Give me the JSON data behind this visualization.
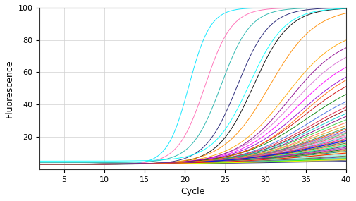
{
  "xlabel": "Cycle",
  "ylabel": "Fluorescence",
  "xlim": [
    2,
    40
  ],
  "ylim": [
    0,
    100
  ],
  "xticks": [
    5,
    10,
    15,
    20,
    25,
    30,
    35,
    40
  ],
  "yticks": [
    20,
    40,
    60,
    80,
    100
  ],
  "background_color": "#ffffff",
  "grid_color": "#d0d0d0",
  "curves": [
    {
      "color": "#00e5ff",
      "midpoint": 20.5,
      "steepness": 0.75,
      "ymax": 100,
      "ymin": 3
    },
    {
      "color": "#ff69b4",
      "midpoint": 22.5,
      "steepness": 0.6,
      "ymax": 100,
      "ymin": 3
    },
    {
      "color": "#20b2aa",
      "midpoint": 24.5,
      "steepness": 0.55,
      "ymax": 100,
      "ymin": 4
    },
    {
      "color": "#191970",
      "midpoint": 26.5,
      "steepness": 0.5,
      "ymax": 100,
      "ymin": 3
    },
    {
      "color": "#000000",
      "midpoint": 28.5,
      "steepness": 0.45,
      "ymax": 100,
      "ymin": 3
    },
    {
      "color": "#ff8c00",
      "midpoint": 30.5,
      "steepness": 0.35,
      "ymax": 100,
      "ymin": 3
    },
    {
      "color": "#ffa500",
      "midpoint": 32.5,
      "steepness": 0.3,
      "ymax": 88,
      "ymin": 3
    },
    {
      "color": "#da70d6",
      "midpoint": 33.5,
      "steepness": 0.28,
      "ymax": 80,
      "ymin": 3
    },
    {
      "color": "#ff00ff",
      "midpoint": 34.0,
      "steepness": 0.27,
      "ymax": 75,
      "ymin": 3
    },
    {
      "color": "#9400d3",
      "midpoint": 34.5,
      "steepness": 0.26,
      "ymax": 70,
      "ymin": 3
    },
    {
      "color": "#cc0000",
      "midpoint": 35.0,
      "steepness": 0.25,
      "ymax": 65,
      "ymin": 3
    },
    {
      "color": "#008000",
      "midpoint": 35.2,
      "steepness": 0.24,
      "ymax": 60,
      "ymin": 3
    },
    {
      "color": "#4169e1",
      "midpoint": 35.5,
      "steepness": 0.24,
      "ymax": 55,
      "ymin": 3
    },
    {
      "color": "#dc143c",
      "midpoint": 35.8,
      "steepness": 0.23,
      "ymax": 52,
      "ymin": 3
    },
    {
      "color": "#8b0000",
      "midpoint": 36.0,
      "steepness": 0.23,
      "ymax": 50,
      "ymin": 3
    },
    {
      "color": "#00ced1",
      "midpoint": 36.2,
      "steepness": 0.22,
      "ymax": 48,
      "ymin": 3
    },
    {
      "color": "#800080",
      "midpoint": 36.4,
      "steepness": 0.22,
      "ymax": 46,
      "ymin": 3
    },
    {
      "color": "#32cd32",
      "midpoint": 36.6,
      "steepness": 0.21,
      "ymax": 44,
      "ymin": 3
    },
    {
      "color": "#ff6347",
      "midpoint": 36.8,
      "steepness": 0.21,
      "ymax": 42,
      "ymin": 3
    },
    {
      "color": "#daa520",
      "midpoint": 37.0,
      "steepness": 0.2,
      "ymax": 40,
      "ymin": 3
    },
    {
      "color": "#2e8b57",
      "midpoint": 37.1,
      "steepness": 0.2,
      "ymax": 38,
      "ymin": 3
    },
    {
      "color": "#ff4500",
      "midpoint": 37.2,
      "steepness": 0.2,
      "ymax": 37,
      "ymin": 3
    },
    {
      "color": "#6a5acd",
      "midpoint": 37.3,
      "steepness": 0.19,
      "ymax": 36,
      "ymin": 3
    },
    {
      "color": "#db7093",
      "midpoint": 37.4,
      "steepness": 0.19,
      "ymax": 35,
      "ymin": 3
    },
    {
      "color": "#3cb371",
      "midpoint": 37.5,
      "steepness": 0.19,
      "ymax": 34,
      "ymin": 3
    },
    {
      "color": "#cd5c5c",
      "midpoint": 37.6,
      "steepness": 0.18,
      "ymax": 33,
      "ymin": 3
    },
    {
      "color": "#ee82ee",
      "midpoint": 37.7,
      "steepness": 0.18,
      "ymax": 32,
      "ymin": 3
    },
    {
      "color": "#20b2aa",
      "midpoint": 37.8,
      "steepness": 0.18,
      "ymax": 31,
      "ymin": 3
    },
    {
      "color": "#ff1493",
      "midpoint": 37.9,
      "steepness": 0.17,
      "ymax": 30,
      "ymin": 3
    },
    {
      "color": "#8b4513",
      "midpoint": 38.0,
      "steepness": 0.17,
      "ymax": 29,
      "ymin": 3
    },
    {
      "color": "#4682b4",
      "midpoint": 38.1,
      "steepness": 0.17,
      "ymax": 28,
      "ymin": 3
    },
    {
      "color": "#a0522d",
      "midpoint": 38.2,
      "steepness": 0.17,
      "ymax": 27,
      "ymin": 3
    },
    {
      "color": "#228b22",
      "midpoint": 38.3,
      "steepness": 0.16,
      "ymax": 26,
      "ymin": 3
    },
    {
      "color": "#ff7f50",
      "midpoint": 38.4,
      "steepness": 0.16,
      "ymax": 25,
      "ymin": 3
    },
    {
      "color": "#00ff7f",
      "midpoint": 38.5,
      "steepness": 0.16,
      "ymax": 24,
      "ymin": 3
    },
    {
      "color": "#2f4f4f",
      "midpoint": 38.6,
      "steepness": 0.16,
      "ymax": 23,
      "ymin": 3
    },
    {
      "color": "#9932cc",
      "midpoint": 38.7,
      "steepness": 0.15,
      "ymax": 22,
      "ymin": 3
    },
    {
      "color": "#c71585",
      "midpoint": 38.8,
      "steepness": 0.15,
      "ymax": 21,
      "ymin": 3
    },
    {
      "color": "#006400",
      "midpoint": 38.9,
      "steepness": 0.15,
      "ymax": 20,
      "ymin": 3
    },
    {
      "color": "#b8860b",
      "midpoint": 39.0,
      "steepness": 0.15,
      "ymax": 19,
      "ymin": 3
    },
    {
      "color": "#008080",
      "midpoint": 39.1,
      "steepness": 0.14,
      "ymax": 18,
      "ymin": 3
    },
    {
      "color": "#f0e68c",
      "midpoint": 39.2,
      "steepness": 0.14,
      "ymax": 17,
      "ymin": 3
    },
    {
      "color": "#adff2f",
      "midpoint": 39.3,
      "steepness": 0.14,
      "ymax": 16,
      "ymin": 3
    },
    {
      "color": "#b0c4de",
      "midpoint": 39.4,
      "steepness": 0.13,
      "ymax": 15,
      "ymin": 3
    },
    {
      "color": "#7fffd4",
      "midpoint": 39.5,
      "steepness": 0.13,
      "ymax": 14,
      "ymin": 3
    },
    {
      "color": "#556b2f",
      "midpoint": 39.6,
      "steepness": 0.13,
      "ymax": 13,
      "ymin": 3
    },
    {
      "color": "#483d8b",
      "midpoint": 39.7,
      "steepness": 0.13,
      "ymax": 12,
      "ymin": 3
    },
    {
      "color": "#bc8f8f",
      "midpoint": 39.8,
      "steepness": 0.12,
      "ymax": 11,
      "ymin": 3
    },
    {
      "color": "#40e0d0",
      "midpoint": 39.9,
      "steepness": 0.12,
      "ymax": 11,
      "ymin": 3
    },
    {
      "color": "#fa8072",
      "midpoint": 40.0,
      "steepness": 0.12,
      "ymax": 10,
      "ymin": 3
    },
    {
      "color": "#90ee90",
      "midpoint": 40.1,
      "steepness": 0.12,
      "ymax": 10,
      "ymin": 3
    },
    {
      "color": "#afeeee",
      "midpoint": 40.2,
      "steepness": 0.11,
      "ymax": 9,
      "ymin": 3
    },
    {
      "color": "#7b68ee",
      "midpoint": 40.3,
      "steepness": 0.11,
      "ymax": 9,
      "ymin": 3
    },
    {
      "color": "#696969",
      "midpoint": 40.5,
      "steepness": 0.1,
      "ymax": 8,
      "ymin": 3
    },
    {
      "color": "#191970",
      "midpoint": 41.0,
      "steepness": 0.1,
      "ymax": 7,
      "ymin": 3
    },
    {
      "color": "#00ff00",
      "midpoint": 40.0,
      "steepness": 0.12,
      "ymax": 10,
      "ymin": 3
    },
    {
      "color": "#ffff00",
      "midpoint": 40.5,
      "steepness": 0.11,
      "ymax": 9,
      "ymin": 3
    },
    {
      "color": "#ff0000",
      "midpoint": 39.0,
      "steepness": 0.14,
      "ymax": 16,
      "ymin": 3
    },
    {
      "color": "#0000ff",
      "midpoint": 38.0,
      "steepness": 0.17,
      "ymax": 28,
      "ymin": 3
    },
    {
      "color": "#00ffff",
      "midpoint": 28.0,
      "steepness": 0.45,
      "ymax": 100,
      "ymin": 5
    },
    {
      "color": "#8b008b",
      "midpoint": 33.0,
      "steepness": 0.3,
      "ymax": 84,
      "ymin": 3
    },
    {
      "color": "#ff6600",
      "midpoint": 34.8,
      "steepness": 0.27,
      "ymax": 68,
      "ymin": 3
    }
  ]
}
